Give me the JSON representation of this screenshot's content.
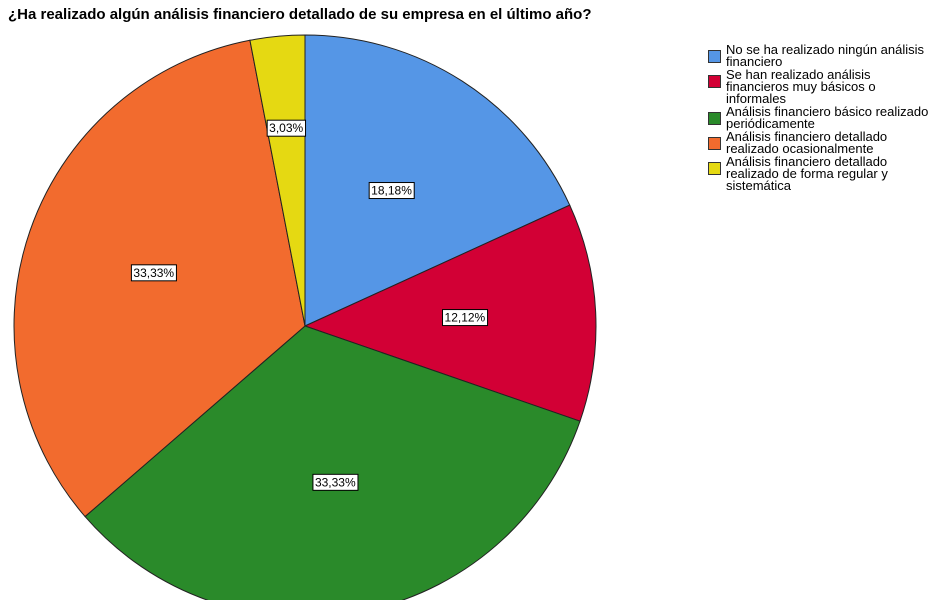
{
  "chart_data": {
    "type": "pie",
    "title": "¿Ha realizado algún análisis financiero detallado de su empresa en el último año?",
    "categories": [
      "No se ha realizado ningún análisis financiero",
      "Se han realizado análisis financieros muy básicos o informales",
      "Análisis financiero básico realizado periódicamente",
      "Análisis financiero detallado realizado ocasionalmente",
      "Análisis financiero detallado realizado de forma regular y sistemática"
    ],
    "values": [
      18.18,
      12.12,
      33.33,
      33.33,
      3.03
    ],
    "value_labels": [
      "18,18%",
      "12,12%",
      "33,33%",
      "33,33%",
      "3,03%"
    ],
    "colors": [
      "#5596e6",
      "#d20035",
      "#2a8a2a",
      "#f26b2e",
      "#e5d912"
    ],
    "legend": "right"
  }
}
